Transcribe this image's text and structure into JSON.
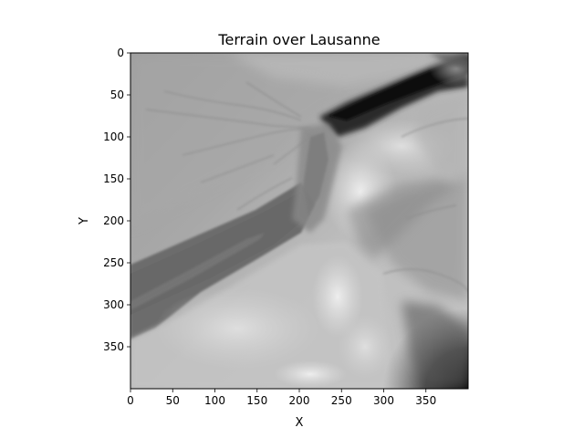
{
  "chart_data": {
    "type": "heatmap",
    "title": "Terrain over Lausanne",
    "xlabel": "X",
    "ylabel": "Y",
    "xlim": [
      0,
      400
    ],
    "ylim": [
      400,
      0
    ],
    "y_axis_inverted": true,
    "grid": false,
    "colormap": "gray",
    "x_ticks": [
      0,
      50,
      100,
      150,
      200,
      250,
      300,
      350
    ],
    "y_ticks": [
      0,
      50,
      100,
      150,
      200,
      250,
      300,
      350
    ],
    "x_tick_labels": [
      "0",
      "50",
      "100",
      "150",
      "200",
      "250",
      "300",
      "350"
    ],
    "y_tick_labels": [
      "0",
      "50",
      "100",
      "150",
      "200",
      "250",
      "300",
      "350"
    ]
  }
}
